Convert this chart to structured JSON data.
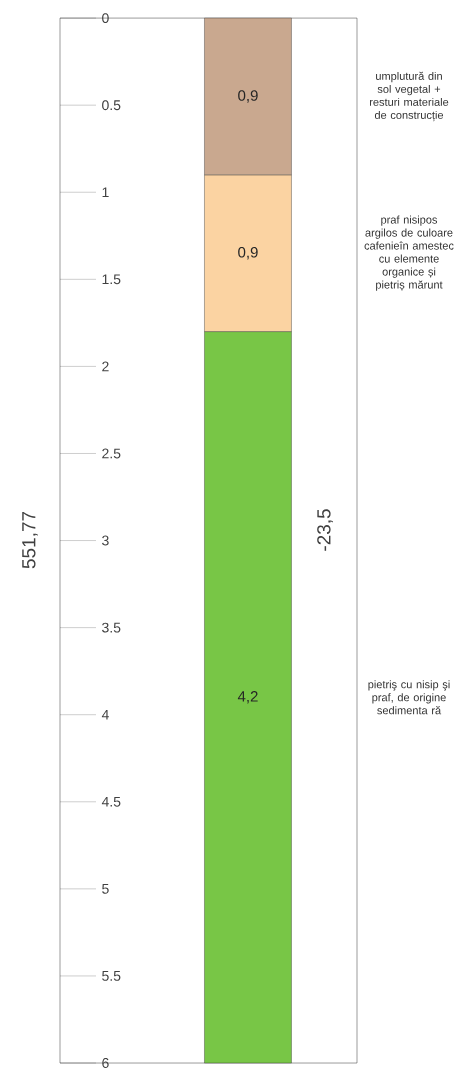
{
  "chart_data": {
    "type": "bar",
    "stacked": true,
    "categories": [
      null
    ],
    "series": [
      {
        "name": "umplutură din sol vegetal + resturi materiale de construcție",
        "color": "#c9a88f",
        "values": [
          0.9
        ],
        "value_labels": [
          "0,9"
        ]
      },
      {
        "name": "praf nisipos argilos de culoare cafenieîn amestec cu elemente organice și pietriș mărunt",
        "color": "#fbd3a2",
        "values": [
          0.9
        ],
        "value_labels": [
          "0,9"
        ]
      },
      {
        "name": "pietriş cu nisip şi praf, de origine sedimenta ră",
        "color": "#78c646",
        "values": [
          4.2
        ],
        "value_labels": [
          "4,2"
        ]
      }
    ],
    "ylim": [
      6,
      0
    ],
    "yticks": [
      0,
      0.5,
      1,
      1.5,
      2,
      2.5,
      3,
      3.5,
      4,
      4.5,
      5,
      5.5,
      6
    ],
    "annotations": [
      "551,77",
      "-23,5"
    ]
  }
}
